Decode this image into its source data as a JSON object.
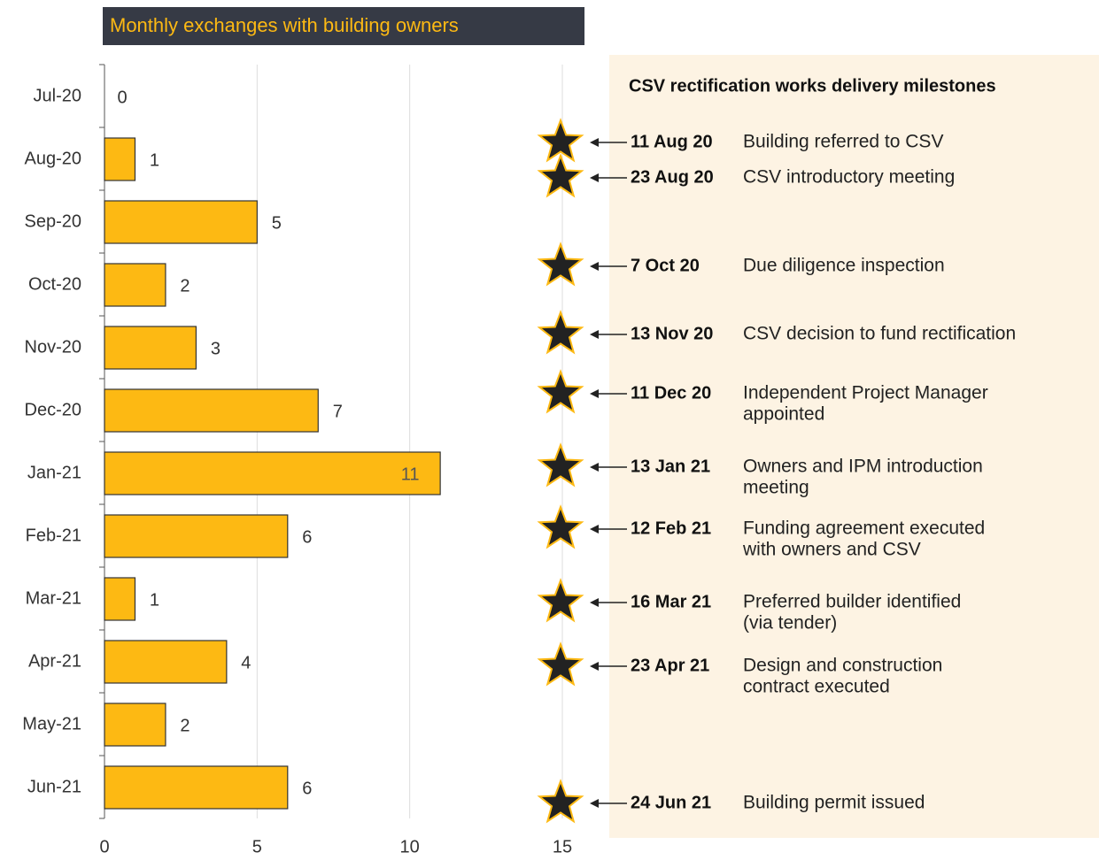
{
  "chart_data": {
    "type": "bar",
    "orientation": "horizontal",
    "title": "Monthly exchanges with building owners",
    "categories": [
      "Jul-20",
      "Aug-20",
      "Sep-20",
      "Oct-20",
      "Nov-20",
      "Dec-20",
      "Jan-21",
      "Feb-21",
      "Mar-21",
      "Apr-21",
      "May-21",
      "Jun-21"
    ],
    "values": [
      0,
      1,
      5,
      2,
      3,
      7,
      11,
      6,
      1,
      4,
      2,
      6
    ],
    "color": "#fdb913",
    "xlim": [
      0,
      15
    ],
    "xticks": [
      0,
      5,
      10,
      15
    ],
    "grid": true
  },
  "milestones": {
    "title": "CSV rectification works delivery milestones",
    "items": [
      {
        "date": "11 Aug 20",
        "lines": [
          "Building referred to CSV"
        ]
      },
      {
        "date": "23 Aug 20",
        "lines": [
          "CSV introductory meeting"
        ]
      },
      {
        "date": "7 Oct 20",
        "lines": [
          "Due diligence inspection"
        ]
      },
      {
        "date": "13 Nov 20",
        "lines": [
          "CSV decision to fund rectification"
        ]
      },
      {
        "date": "11 Dec 20",
        "lines": [
          "Independent Project Manager",
          "appointed"
        ]
      },
      {
        "date": "13 Jan 21",
        "lines": [
          "Owners and IPM introduction",
          "meeting"
        ]
      },
      {
        "date": "12 Feb 21",
        "lines": [
          "Funding agreement executed",
          "with owners and CSV"
        ]
      },
      {
        "date": "16 Mar 21",
        "lines": [
          "Preferred builder identified",
          "(via tender)"
        ]
      },
      {
        "date": "23 Apr 21",
        "lines": [
          "Design and construction",
          "contract executed"
        ]
      },
      {
        "date": "24 Jun 21",
        "lines": [
          "Building permit issued"
        ]
      }
    ]
  }
}
